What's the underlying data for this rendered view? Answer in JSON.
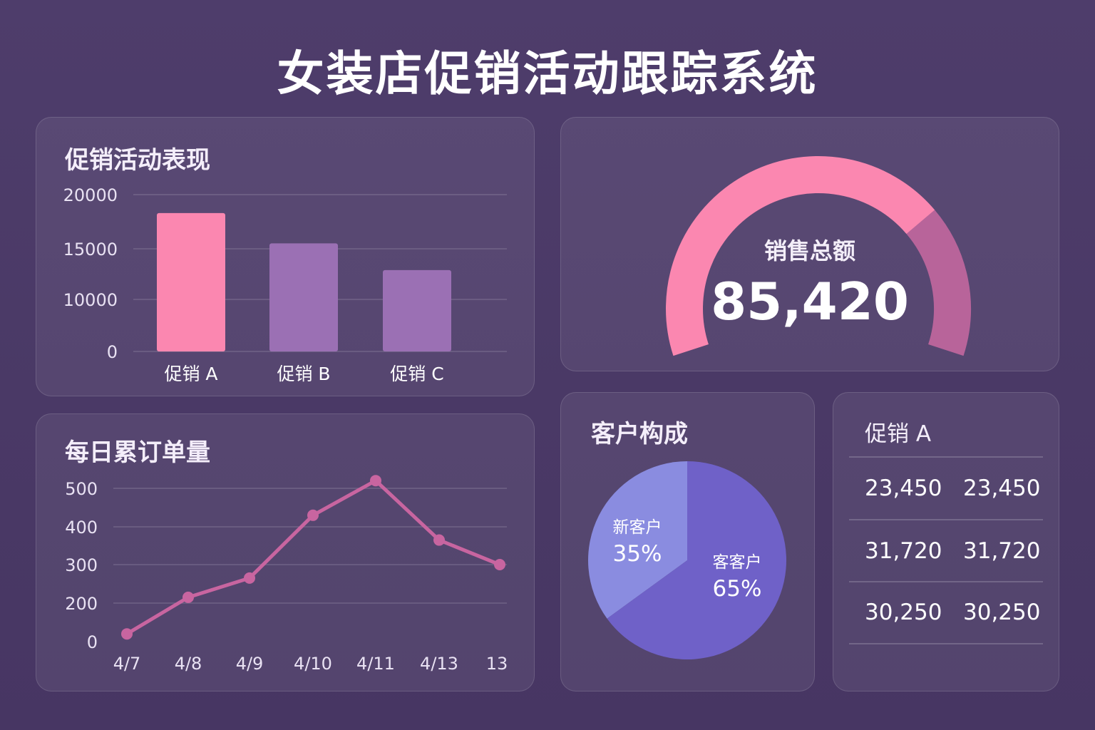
{
  "page": {
    "title": "女装店促销活动跟踪系统"
  },
  "colors": {
    "pink": "#fb87b0",
    "purple": "#9b70b4",
    "line": "#c865a0",
    "new_customer": "#8a8ce0",
    "old_customer": "#6f61c8",
    "gauge_rest": "#b8649a"
  },
  "promo_panel": {
    "title": "促销活动表现",
    "chart_data": {
      "type": "bar",
      "categories": [
        "促销 A",
        "促销 B",
        "促销 C"
      ],
      "values": [
        18300,
        15500,
        12900
      ],
      "yticks": [
        "0",
        "10000",
        "15000",
        "20000"
      ],
      "ytick_values": [
        0,
        10000,
        15000,
        20000
      ],
      "ylim": [
        0,
        20000
      ]
    }
  },
  "gauge": {
    "label": "销售总额",
    "value": "85,420",
    "fill_fraction": 0.73
  },
  "orders_panel": {
    "title": "每日累订单量",
    "chart_data": {
      "type": "line",
      "categories": [
        "4/7",
        "4/8",
        "4/9",
        "4/10",
        "4/11",
        "4/13",
        "13"
      ],
      "values": [
        40,
        215,
        265,
        430,
        520,
        365,
        300
      ],
      "yticks": [
        "0",
        "200",
        "300",
        "400",
        "500"
      ],
      "ytick_values": [
        0,
        200,
        300,
        400,
        500
      ]
    }
  },
  "customer_panel": {
    "title": "客户构成",
    "chart_data": {
      "type": "pie",
      "slices": [
        {
          "label": "新客户",
          "percent": "35%",
          "value": 35
        },
        {
          "label": "客客户",
          "percent": "65%",
          "value": 65
        }
      ]
    }
  },
  "promo_detail": {
    "title": "促销 A",
    "rows": [
      {
        "a": "23,450",
        "b": "23,450"
      },
      {
        "a": "31,720",
        "b": "31,720"
      },
      {
        "a": "30,250",
        "b": "30,250"
      }
    ]
  }
}
